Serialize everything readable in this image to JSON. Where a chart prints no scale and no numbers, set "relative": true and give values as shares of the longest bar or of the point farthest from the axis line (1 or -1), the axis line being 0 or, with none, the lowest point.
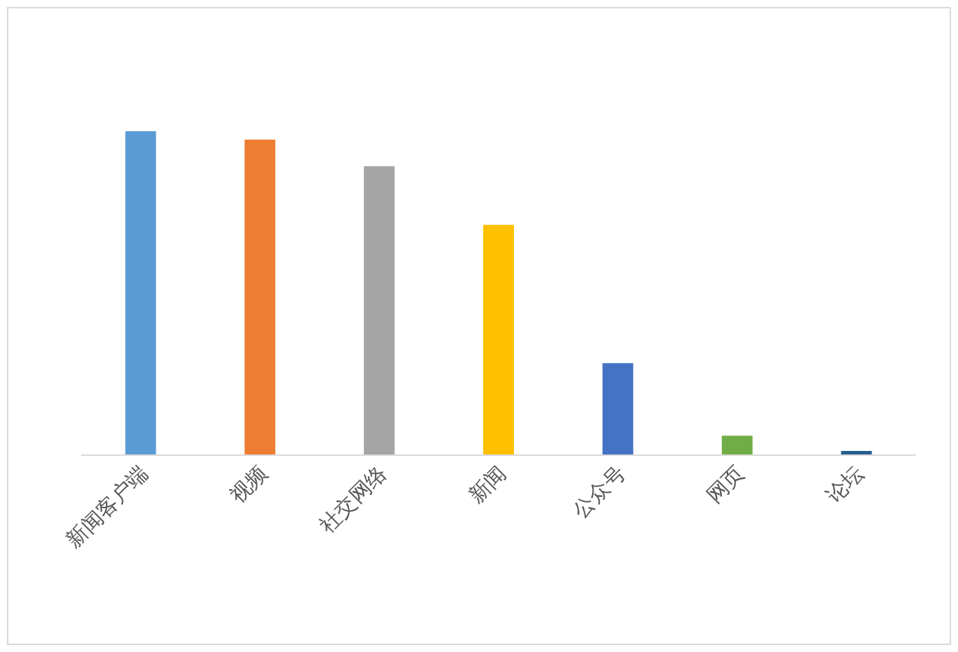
{
  "chart_data": {
    "type": "bar",
    "relative": true,
    "categories": [
      "新闻客户端",
      "视频",
      "社交网络",
      "新闻",
      "公众号",
      "网页",
      "论坛"
    ],
    "values": [
      1,
      0.974,
      0.892,
      0.711,
      0.284,
      0.06,
      0.013
    ],
    "colors": [
      "#5b9bd5",
      "#ed7d31",
      "#a5a5a5",
      "#ffc000",
      "#4472c4",
      "#70ad47",
      "#255e91"
    ]
  }
}
